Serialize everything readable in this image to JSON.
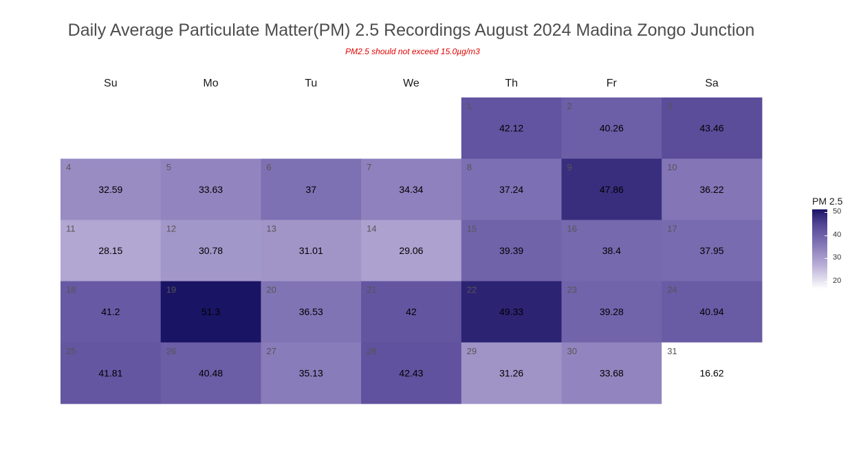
{
  "title": "Daily Average Particulate Matter(PM) 2.5 Recordings August 2024 Madina Zongo Junction",
  "subtitle": "PM2.5 should not exceed 15.0µg/m3",
  "chart_data": {
    "type": "heatmap",
    "layout": "calendar",
    "weekdays": [
      "Su",
      "Mo",
      "Tu",
      "We",
      "Th",
      "Fr",
      "Sa"
    ],
    "first_weekday_index": 4,
    "days": [
      1,
      2,
      3,
      4,
      5,
      6,
      7,
      8,
      9,
      10,
      11,
      12,
      13,
      14,
      15,
      16,
      17,
      18,
      19,
      20,
      21,
      22,
      23,
      24,
      25,
      26,
      27,
      28,
      29,
      30,
      31
    ],
    "values": [
      42.12,
      40.26,
      43.46,
      32.59,
      33.63,
      37,
      34.34,
      37.24,
      47.86,
      36.22,
      28.15,
      30.78,
      31.01,
      29.06,
      39.39,
      38.4,
      37.95,
      41.2,
      51.3,
      36.53,
      42,
      49.33,
      39.28,
      40.94,
      41.81,
      40.48,
      35.13,
      42.43,
      31.26,
      33.68,
      16.62
    ],
    "legend": {
      "title": "PM 2.5",
      "ticks": [
        50,
        40,
        30,
        20
      ],
      "range": [
        16.62,
        51.3
      ],
      "position": "right"
    },
    "color_low": "#ffffff",
    "color_high": "#1a1464"
  }
}
